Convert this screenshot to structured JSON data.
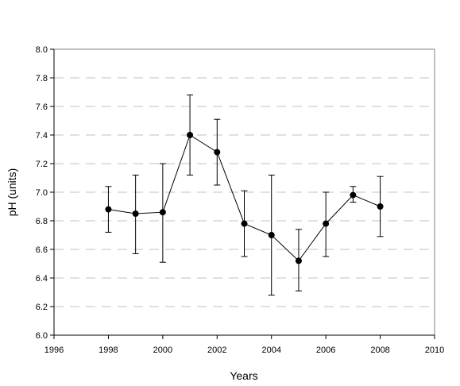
{
  "chart_data": {
    "type": "scatter",
    "title": "",
    "xlabel": "Years",
    "ylabel": "pH (units)",
    "xlim": [
      1996,
      2010
    ],
    "ylim": [
      6.0,
      8.0
    ],
    "xticks": [
      1996,
      1998,
      2000,
      2002,
      2004,
      2006,
      2008,
      2010
    ],
    "yticks": [
      6.0,
      6.2,
      6.4,
      6.6,
      6.8,
      7.0,
      7.2,
      7.4,
      7.6,
      7.8,
      8.0
    ],
    "xtick_labels": [
      "1996",
      "1998",
      "2000",
      "2002",
      "2004",
      "2006",
      "2008",
      "2010"
    ],
    "ytick_labels": [
      "6.0",
      "6.2",
      "6.4",
      "6.6",
      "6.8",
      "7.0",
      "7.2",
      "7.4",
      "7.6",
      "7.8",
      "8.0"
    ],
    "grid": "horizontal dashed",
    "legend": "none",
    "series": [
      {
        "x": [
          1998,
          1999,
          2000,
          2001,
          2002,
          2003,
          2004,
          2005,
          2006,
          2007,
          2008
        ],
        "y": [
          6.88,
          6.85,
          6.86,
          7.4,
          7.28,
          6.78,
          6.7,
          6.52,
          6.78,
          6.98,
          6.9
        ],
        "err_low": [
          6.72,
          6.57,
          6.51,
          7.12,
          7.05,
          6.55,
          6.28,
          6.31,
          6.55,
          6.93,
          6.69
        ],
        "err_high": [
          7.04,
          7.12,
          7.2,
          7.68,
          7.51,
          7.01,
          7.12,
          6.74,
          7.0,
          7.04,
          7.11
        ],
        "color": "#000000"
      }
    ]
  }
}
